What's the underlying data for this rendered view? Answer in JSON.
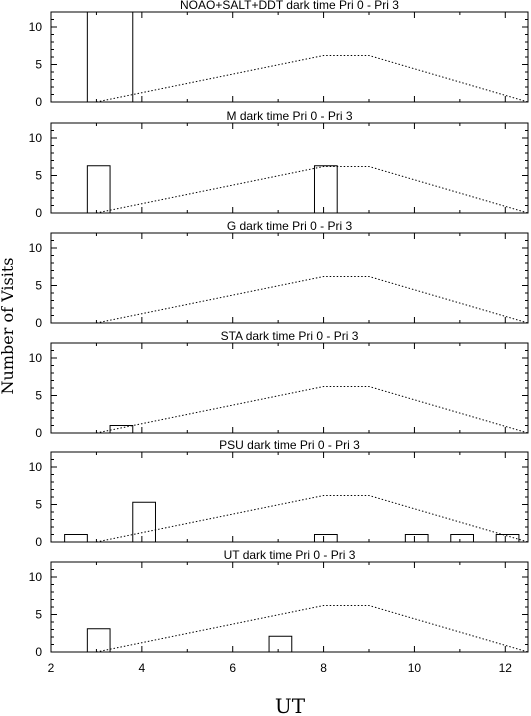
{
  "figure": {
    "ylabel": "Number of Visits",
    "xlabel": "UT"
  },
  "chart_data": [
    {
      "type": "bar",
      "title": "NOAO+SALT+DDT dark time Pri 0 - Pri 3",
      "xlim": [
        2,
        12.5
      ],
      "ylim": [
        0,
        12
      ],
      "x_ticks": [
        2,
        4,
        6,
        8,
        10,
        12
      ],
      "y_ticks": [
        0,
        5,
        10
      ],
      "bars": [
        {
          "x0": 2.8,
          "x1": 3.8,
          "value": 12
        }
      ],
      "curve": [
        [
          3.0,
          0
        ],
        [
          8.0,
          6.2
        ],
        [
          9.0,
          6.2
        ],
        [
          12.5,
          0
        ]
      ]
    },
    {
      "type": "bar",
      "title": "M    dark time Pri 0 - Pri 3",
      "xlim": [
        2,
        12.5
      ],
      "ylim": [
        0,
        12
      ],
      "x_ticks": [
        2,
        4,
        6,
        8,
        10,
        12
      ],
      "y_ticks": [
        0,
        5,
        10
      ],
      "bars": [
        {
          "x0": 2.8,
          "x1": 3.3,
          "value": 6.3
        },
        {
          "x0": 7.8,
          "x1": 8.3,
          "value": 6.3
        }
      ],
      "curve": [
        [
          3.0,
          0
        ],
        [
          8.0,
          6.2
        ],
        [
          9.0,
          6.2
        ],
        [
          12.5,
          0
        ]
      ]
    },
    {
      "type": "bar",
      "title": "G    dark time Pri 0 - Pri 3",
      "xlim": [
        2,
        12.5
      ],
      "ylim": [
        0,
        12
      ],
      "x_ticks": [
        2,
        4,
        6,
        8,
        10,
        12
      ],
      "y_ticks": [
        0,
        5,
        10
      ],
      "bars": [],
      "curve": [
        [
          3.0,
          0
        ],
        [
          8.0,
          6.2
        ],
        [
          9.0,
          6.2
        ],
        [
          12.5,
          0
        ]
      ]
    },
    {
      "type": "bar",
      "title": "STA    dark time Pri 0 - Pri 3",
      "xlim": [
        2,
        12.5
      ],
      "ylim": [
        0,
        12
      ],
      "x_ticks": [
        2,
        4,
        6,
        8,
        10,
        12
      ],
      "y_ticks": [
        0,
        5,
        10
      ],
      "bars": [
        {
          "x0": 3.3,
          "x1": 3.8,
          "value": 1
        }
      ],
      "curve": [
        [
          3.0,
          0
        ],
        [
          8.0,
          6.2
        ],
        [
          9.0,
          6.2
        ],
        [
          12.5,
          0
        ]
      ]
    },
    {
      "type": "bar",
      "title": "PSU    dark time Pri 0 - Pri 3",
      "xlim": [
        2,
        12.5
      ],
      "ylim": [
        0,
        12
      ],
      "x_ticks": [
        2,
        4,
        6,
        8,
        10,
        12
      ],
      "y_ticks": [
        0,
        5,
        10
      ],
      "bars": [
        {
          "x0": 2.3,
          "x1": 2.8,
          "value": 1
        },
        {
          "x0": 3.8,
          "x1": 4.3,
          "value": 5.3
        },
        {
          "x0": 7.8,
          "x1": 8.3,
          "value": 1
        },
        {
          "x0": 9.8,
          "x1": 10.3,
          "value": 1
        },
        {
          "x0": 10.8,
          "x1": 11.3,
          "value": 1
        },
        {
          "x0": 11.8,
          "x1": 12.3,
          "value": 1
        }
      ],
      "curve": [
        [
          3.0,
          0
        ],
        [
          8.0,
          6.2
        ],
        [
          9.0,
          6.2
        ],
        [
          12.5,
          0
        ]
      ]
    },
    {
      "type": "bar",
      "title": "UT    dark time Pri 0 - Pri 3",
      "xlim": [
        2,
        12.5
      ],
      "ylim": [
        0,
        12
      ],
      "x_ticks": [
        2,
        4,
        6,
        8,
        10,
        12
      ],
      "y_ticks": [
        0,
        5,
        10
      ],
      "bars": [
        {
          "x0": 2.8,
          "x1": 3.3,
          "value": 3.1
        },
        {
          "x0": 6.8,
          "x1": 7.3,
          "value": 2.1
        }
      ],
      "curve": [
        [
          3.0,
          0
        ],
        [
          8.0,
          6.2
        ],
        [
          9.0,
          6.2
        ],
        [
          12.5,
          0
        ]
      ]
    }
  ]
}
